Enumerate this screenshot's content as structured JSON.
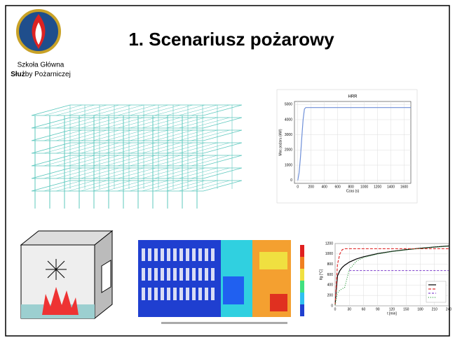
{
  "header": {
    "title": "1. Scenariusz pożarowy"
  },
  "logo": {
    "line1": "Szkoła Główna",
    "line2_bold": "Służ",
    "line2_rest": "by Pożarniczej"
  },
  "hrr_chart": {
    "type": "line",
    "title": "HRR",
    "x_label": "Czas (s)",
    "y_label": "Moc pożaru (kW)",
    "x": [
      0,
      20,
      40,
      60,
      80,
      100,
      120,
      150,
      1700
    ],
    "series": [
      {
        "color": "#6e8fd8",
        "values": [
          0,
          500,
          1500,
          2800,
          4000,
          4700,
          4800,
          4800,
          4800
        ]
      }
    ],
    "xlim": [
      -50,
      1700
    ],
    "ylim": [
      -200,
      5200
    ],
    "xticks": [
      0,
      200,
      400,
      600,
      800,
      1000,
      1200,
      1400,
      1600
    ],
    "yticks": [
      0,
      1000,
      2000,
      3000,
      4000,
      5000
    ],
    "grid": true
  },
  "fire_curves": {
    "type": "line",
    "x_label": "t [min]",
    "y_label": "θg [°C]",
    "x": [
      0,
      5,
      10,
      15,
      20,
      30,
      45,
      60,
      90,
      120,
      150,
      180,
      210,
      240
    ],
    "series": [
      {
        "color": "#000000",
        "dash": "",
        "values": [
          20,
          576,
          678,
          739,
          781,
          842,
          902,
          945,
          1006,
          1049,
          1082,
          1110,
          1133,
          1153
        ]
      },
      {
        "color": "#e03030",
        "dash": "4,2",
        "values": [
          20,
          800,
          1000,
          1080,
          1100,
          1100,
          1100,
          1100,
          1100,
          1100,
          1100,
          1100,
          1100,
          1100
        ]
      },
      {
        "color": "#8a4fd0",
        "dash": "3,2",
        "values": [
          null,
          null,
          null,
          null,
          null,
          680,
          680,
          680,
          680,
          680,
          680,
          680,
          680,
          680
        ]
      },
      {
        "color": "#2a9a3a",
        "dash": "1,2",
        "values": [
          20,
          250,
          300,
          330,
          350,
          700,
          860,
          930,
          1000,
          1045,
          1080,
          1105,
          1130,
          1150
        ]
      }
    ],
    "xlim": [
      0,
      240
    ],
    "ylim": [
      0,
      1200
    ],
    "xticks": [
      0,
      30,
      60,
      90,
      120,
      150,
      180,
      210,
      240
    ],
    "yticks": [
      0,
      200,
      400,
      600,
      800,
      1000,
      1200
    ],
    "grid": true
  }
}
